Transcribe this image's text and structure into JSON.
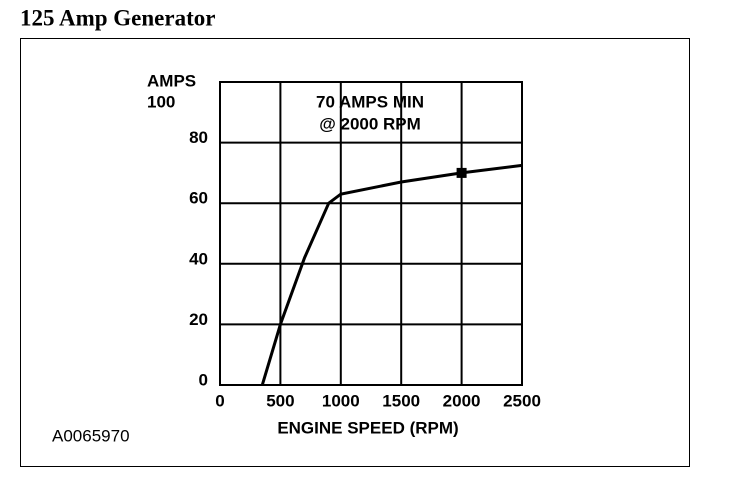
{
  "chart_data": {
    "type": "line",
    "title": "125 Amp Generator",
    "x_label": "ENGINE SPEED (RPM)",
    "y_label": "AMPS",
    "annotation": [
      "70 AMPS MIN",
      "@ 2000 RPM"
    ],
    "figure_id": "A0065970",
    "x": [
      350,
      500,
      700,
      900,
      1000,
      1500,
      2000,
      2500
    ],
    "values": [
      0,
      20,
      42,
      60,
      63,
      67,
      70,
      72.5
    ],
    "color": "#000000",
    "marker": {
      "x": 2000,
      "y": 70
    },
    "xlim": [
      0,
      2500
    ],
    "xticks": [
      0,
      500,
      1000,
      1500,
      2000,
      2500
    ],
    "ylim": [
      0,
      100
    ],
    "yticks": [
      0,
      20,
      40,
      60,
      80,
      100
    ],
    "grid": true
  }
}
